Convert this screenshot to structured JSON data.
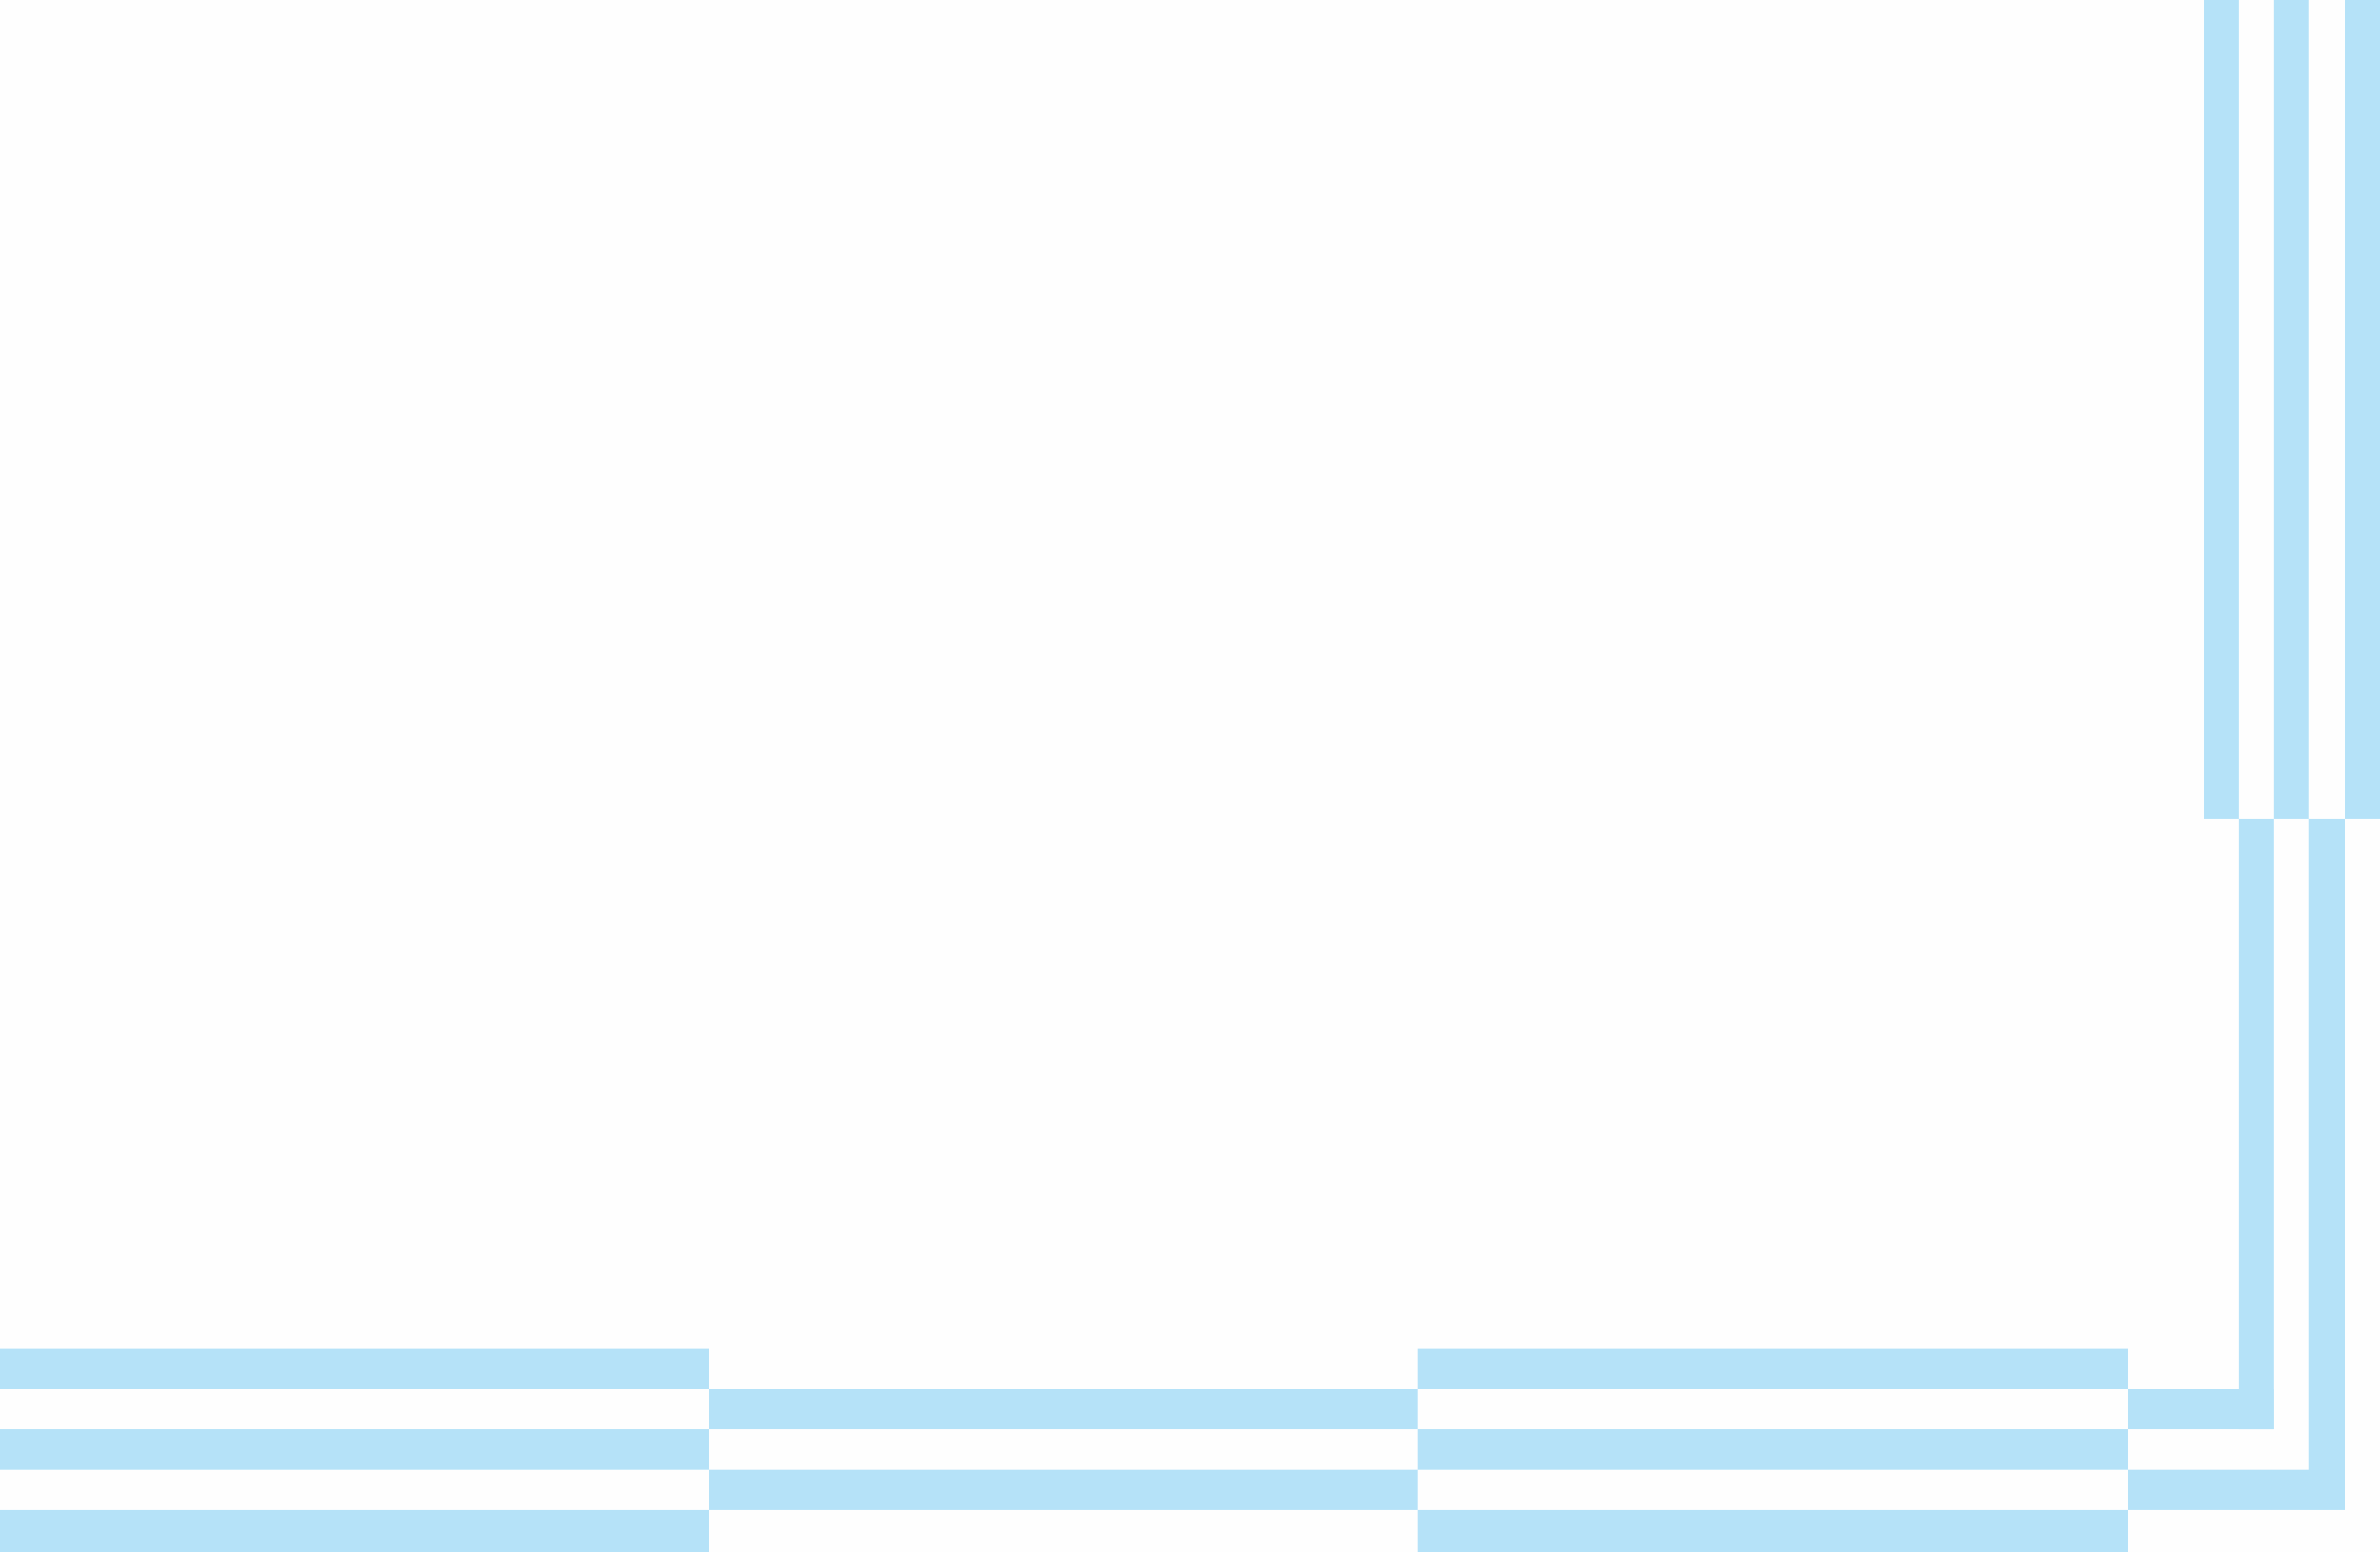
{
  "colors": {
    "background": "#fefefe",
    "stripe": "#b5e2f8"
  }
}
